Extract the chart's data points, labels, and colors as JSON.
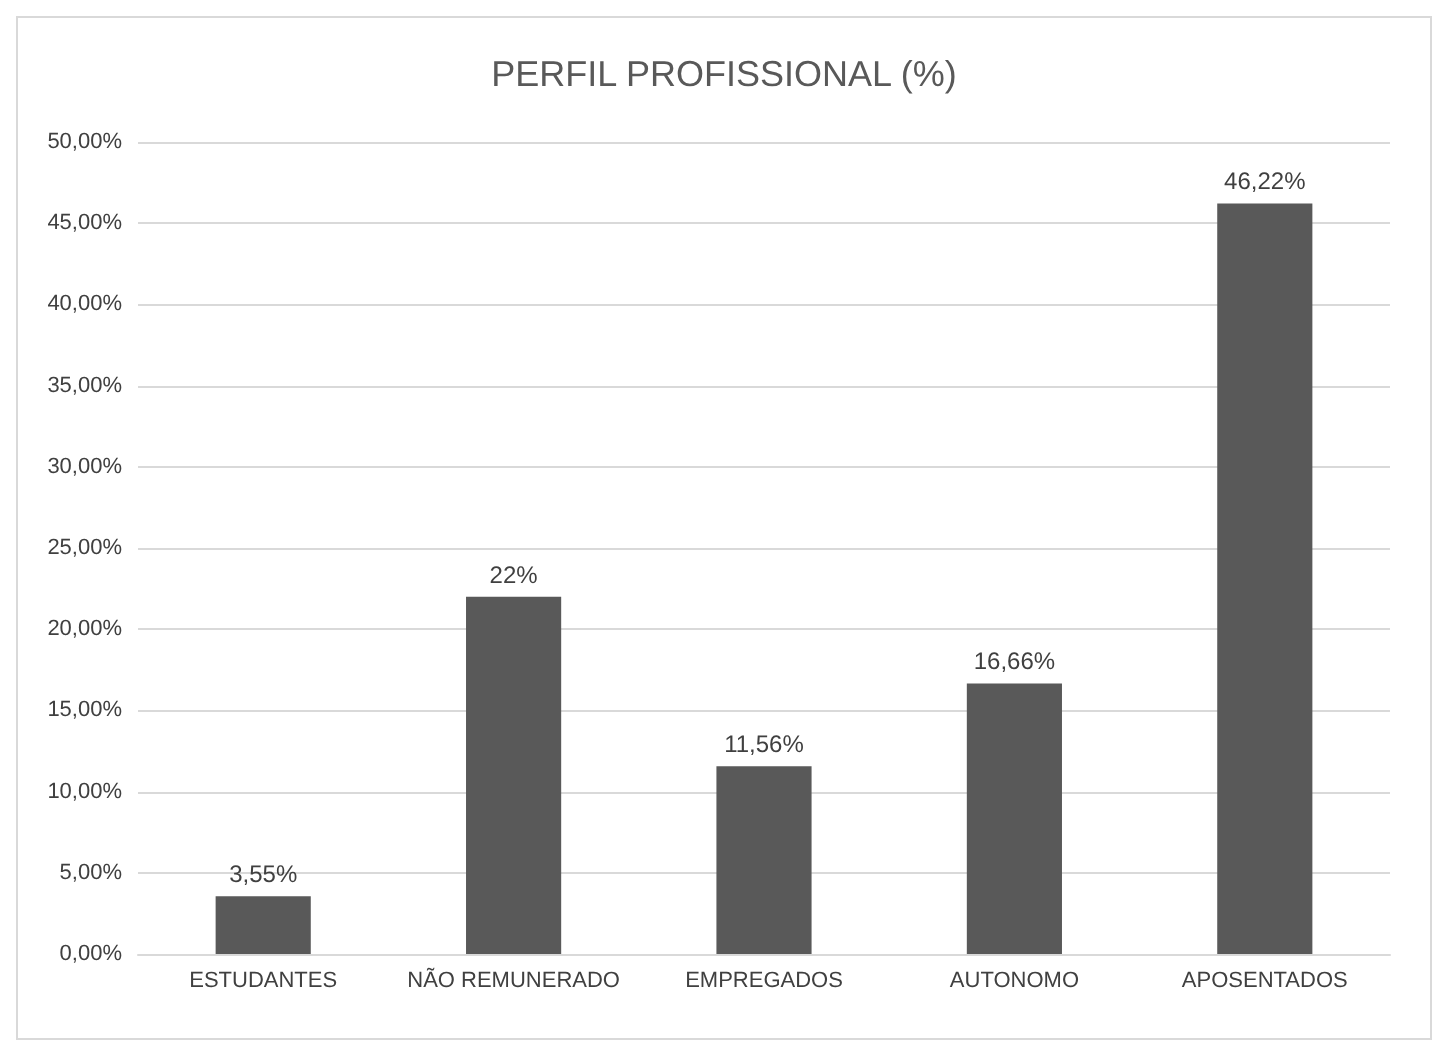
{
  "chart_data": {
    "type": "bar",
    "title": "PERFIL PROFISSIONAL (%)",
    "categories": [
      "ESTUDANTES",
      "NÃO REMUNERADO",
      "EMPREGADOS",
      "AUTONOMO",
      "APOSENTADOS"
    ],
    "values": [
      3.55,
      22,
      11.56,
      16.66,
      46.22
    ],
    "value_labels": [
      "3,55%",
      "22%",
      "11,56%",
      "16,66%",
      "46,22%"
    ],
    "color": "#595959",
    "ylim": [
      0,
      50
    ],
    "yticks": [
      {
        "value": 0,
        "label": "0,00%"
      },
      {
        "value": 5,
        "label": "5,00%"
      },
      {
        "value": 10,
        "label": "10,00%"
      },
      {
        "value": 15,
        "label": "15,00%"
      },
      {
        "value": 20,
        "label": "20,00%"
      },
      {
        "value": 25,
        "label": "25,00%"
      },
      {
        "value": 30,
        "label": "30,00%"
      },
      {
        "value": 35,
        "label": "35,00%"
      },
      {
        "value": 40,
        "label": "40,00%"
      },
      {
        "value": 45,
        "label": "45,00%"
      },
      {
        "value": 50,
        "label": "50,00%"
      }
    ],
    "grid": true
  }
}
